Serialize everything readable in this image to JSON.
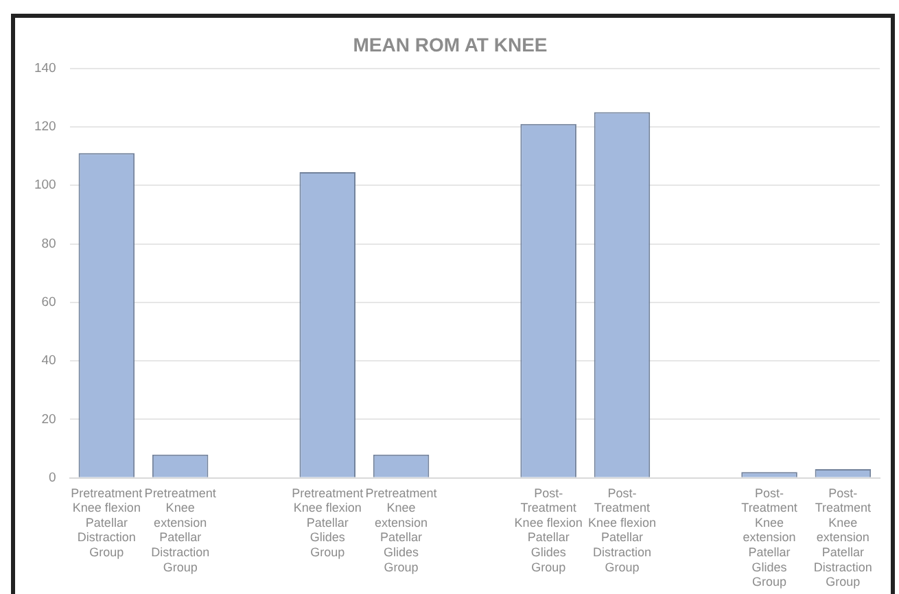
{
  "chart_data": {
    "type": "bar",
    "title": "MEAN ROM AT KNEE",
    "categories": [
      "Pretreatment Knee flexion Patellar Distraction Group",
      "Pretreatment Knee extension Patellar Distraction Group",
      null,
      "Pretreatment Knee flexion Patellar Glides Group",
      "Pretreatment Knee extension Patellar Glides Group",
      null,
      "Post-Treatment Knee flexion Patellar Glides Group",
      "Post-Treatment Knee flexion Patellar Distraction Group",
      null,
      "Post-Treatment Knee extension Patellar Glides Group",
      "Post-Treatment Knee extension Patellar Distraction Group"
    ],
    "values": [
      111,
      8,
      null,
      104.5,
      8,
      null,
      121,
      125,
      null,
      2,
      3
    ],
    "color": "#a3b9dd",
    "ylim": [
      0,
      140
    ],
    "yticks": [
      0,
      20,
      40,
      60,
      80,
      100,
      120,
      140
    ],
    "grid": "y"
  }
}
